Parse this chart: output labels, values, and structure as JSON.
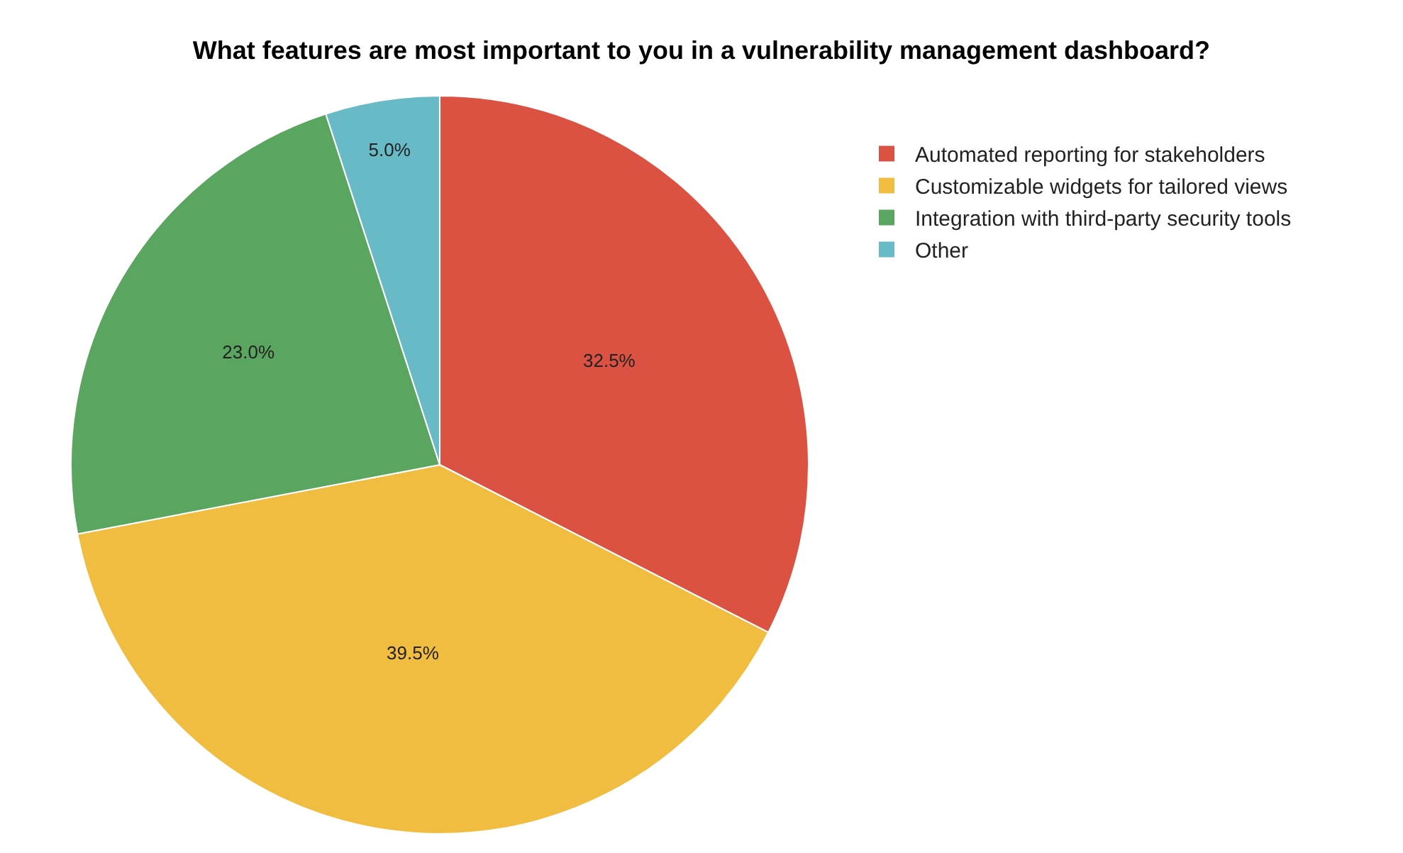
{
  "chart_data": {
    "type": "pie",
    "title": "What features are most important to you in a vulnerability management dashboard?",
    "categories": [
      "Automated reporting for stakeholders",
      "Customizable widgets for tailored views",
      "Integration with third-party security tools",
      "Other"
    ],
    "values": [
      32.5,
      39.5,
      23.0,
      5.0
    ],
    "value_labels": [
      "32.5%",
      "39.5%",
      "23.0%",
      "5.0%"
    ],
    "colors": [
      "#db5242",
      "#f0bd41",
      "#5aa55f",
      "#68bac6"
    ],
    "legend": "top right"
  }
}
